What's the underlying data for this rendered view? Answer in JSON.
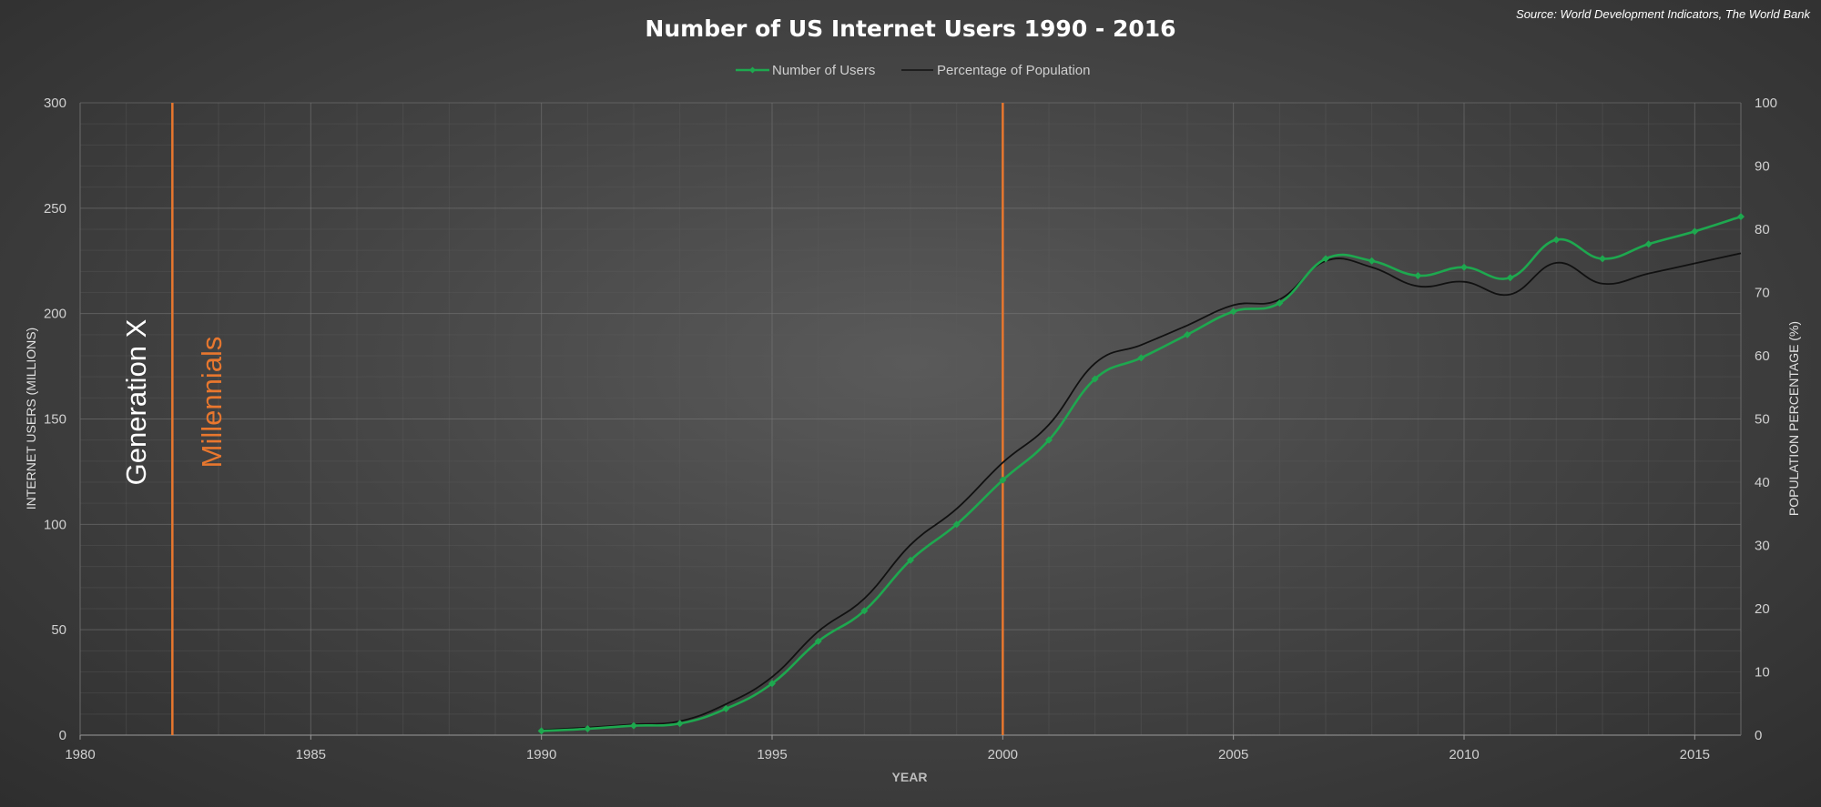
{
  "chart_data": {
    "type": "line",
    "title": "Number of US Internet Users 1990 - 2016",
    "source": "Source: World Development Indicators, The World Bank",
    "xlabel": "YEAR",
    "ylabel": "INTERNET USERS (MILLIONS)",
    "y2label": "POPULATION PERCENTAGE (%)",
    "xlim": [
      1980,
      2016
    ],
    "ylim": [
      0,
      300
    ],
    "y2lim": [
      0,
      100
    ],
    "x_ticks": [
      1980,
      1985,
      1990,
      1995,
      2000,
      2005,
      2010,
      2015
    ],
    "y_ticks": [
      0,
      50,
      100,
      150,
      200,
      250,
      300
    ],
    "y2_ticks": [
      0,
      10,
      20,
      30,
      40,
      50,
      60,
      70,
      80,
      90,
      100
    ],
    "grid": true,
    "legend_position": "top-center",
    "x": [
      1990,
      1991,
      1992,
      1993,
      1994,
      1995,
      1996,
      1997,
      1998,
      1999,
      2000,
      2001,
      2002,
      2003,
      2004,
      2005,
      2006,
      2007,
      2008,
      2009,
      2010,
      2011,
      2012,
      2013,
      2014,
      2015,
      2016
    ],
    "series": [
      {
        "name": "Number of Users",
        "axis": "left",
        "color": "#1ea84f",
        "markers": true,
        "values": [
          2,
          3,
          4.5,
          5.5,
          12.5,
          24.5,
          44.5,
          59,
          83,
          100,
          121,
          140,
          169,
          179,
          190,
          201,
          205,
          226,
          225,
          218,
          222,
          217,
          235,
          226,
          233,
          239,
          246
        ]
      },
      {
        "name": "Percentage of Population",
        "axis": "right",
        "color": "#111111",
        "markers": false,
        "values": [
          0.8,
          1.2,
          1.7,
          2.2,
          4.9,
          9.2,
          16.4,
          21.6,
          30.1,
          35.8,
          43.1,
          49.1,
          58.8,
          61.7,
          64.8,
          68.0,
          68.9,
          75.0,
          74.0,
          71.0,
          71.7,
          69.7,
          74.7,
          71.4,
          73.0,
          74.6,
          76.2
        ]
      }
    ],
    "annotations": [
      {
        "type": "vline",
        "x": 1982,
        "color": "#e8772e",
        "label": "Generation X",
        "label_side": "left",
        "label_color": "#ffffff"
      },
      {
        "type": "vline",
        "x": 1982,
        "color": "#e8772e",
        "label": "Millennials",
        "label_side": "right",
        "label_color": "#e8772e"
      },
      {
        "type": "vline",
        "x": 2000,
        "color": "#e8772e",
        "label": ""
      }
    ]
  }
}
